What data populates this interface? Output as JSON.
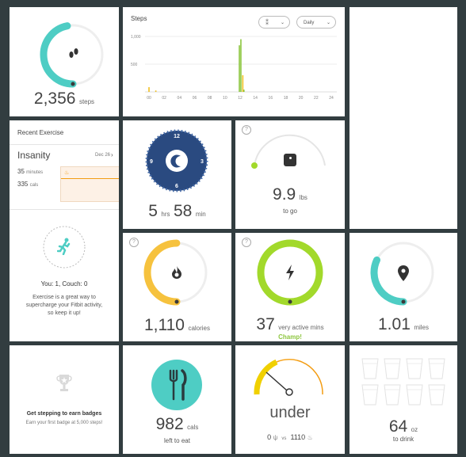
{
  "steps_ring": {
    "value": "2,356",
    "unit": "steps",
    "progress": 0.47
  },
  "steps_chart": {
    "title": "Steps",
    "icon_filter": "footprint-icon",
    "period": "Daily",
    "y_ticks": [
      "1,000",
      "500"
    ],
    "x_ticks": [
      "00",
      "02",
      "04",
      "06",
      "08",
      "10",
      "12",
      "14",
      "16",
      "18",
      "20",
      "22",
      "24"
    ]
  },
  "chart_data": {
    "type": "bar",
    "title": "Steps",
    "xlabel": "",
    "ylabel": "",
    "ylim": [
      0,
      1000
    ],
    "xlim": [
      0,
      24
    ],
    "x": [
      0.0,
      0.9,
      11.9,
      12.1,
      12.35,
      12.5
    ],
    "values": [
      85,
      25,
      840,
      950,
      300,
      40
    ],
    "colors": [
      "#f0c020",
      "#f0c020",
      "#8dc63f",
      "#8dc63f",
      "#f0c020",
      "#8dc63f"
    ]
  },
  "recent_exercise": {
    "header": "Recent Exercise",
    "activity": "Insanity",
    "date": "Dec 26",
    "minutes_value": "35",
    "minutes_label": "minutes",
    "cals_value": "335",
    "cals_label": "cals"
  },
  "exercise_goal": {
    "score": "You: 1, Couch: 0",
    "message": "Exercise is a great way to supercharge your Fitbit activity, so keep it up!"
  },
  "sleep": {
    "hours": "5",
    "hours_unit": "hrs",
    "minutes": "58",
    "minutes_unit": "min",
    "clock_12": "12",
    "clock_3": "3",
    "clock_6": "6",
    "clock_9": "9"
  },
  "weight": {
    "value": "9.9",
    "unit": "lbs",
    "sub": "to go"
  },
  "calories": {
    "value": "1,110",
    "unit": "calories",
    "progress": 0.5
  },
  "active": {
    "value": "37",
    "unit": "very active mins",
    "praise": "Champ!",
    "progress": 1.0
  },
  "distance": {
    "value": "1.01",
    "unit": "miles",
    "progress": 0.32
  },
  "badges": {
    "title": "Get stepping to earn badges",
    "sub": "Earn your first badge at 5,000 steps!"
  },
  "food": {
    "value": "982",
    "unit": "cals",
    "sub": "left to eat"
  },
  "meter": {
    "status": "under",
    "in_value": "0",
    "vs": "vs",
    "out_value": "1110"
  },
  "water": {
    "value": "64",
    "unit": "oz",
    "sub": "to drink",
    "glasses_filled": 0,
    "glasses_total": 8
  },
  "icons": {
    "steps": "footprint-icon",
    "sleep": "moon-icon",
    "weight": "scale-icon",
    "calories": "flame-icon",
    "active": "lightning-icon",
    "distance": "location-pin-icon",
    "exercise": "running-person-icon",
    "badge": "trophy-icon",
    "food": "fork-knife-icon",
    "help": "question-icon"
  },
  "colors": {
    "teal": "#4ecdc4",
    "green": "#a2d92b",
    "yellow": "#f6c23e",
    "navy": "#2a4a80",
    "orange": "#f39c12",
    "ring_bg": "#eeeeee"
  }
}
